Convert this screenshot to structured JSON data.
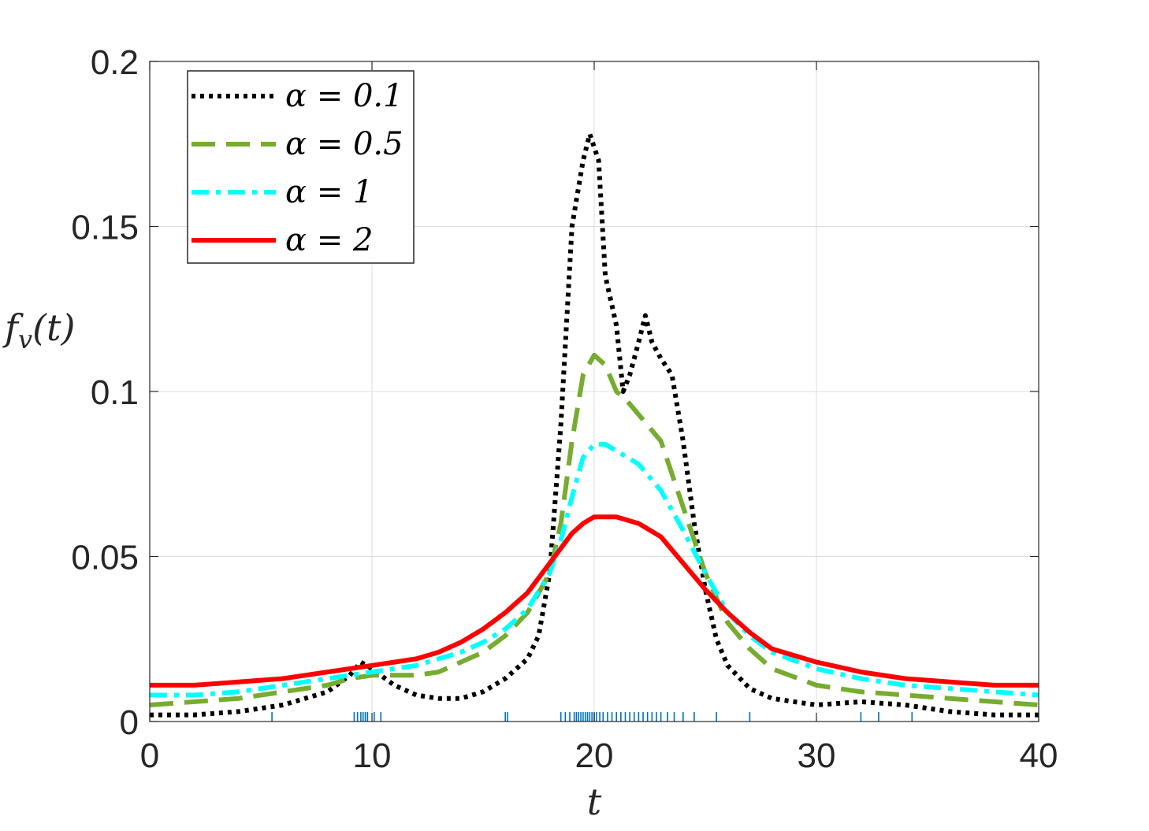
{
  "chart_data": {
    "type": "line",
    "xlabel": "t",
    "ylabel": "f_v(t)",
    "xlim": [
      0,
      40
    ],
    "ylim": [
      0,
      0.2
    ],
    "xticks": [
      "0",
      "10",
      "20",
      "30",
      "40"
    ],
    "yticks": [
      "0",
      "0.05",
      "0.1",
      "0.15",
      "0.2"
    ],
    "grid": true,
    "legend_position": "top-left",
    "series": [
      {
        "name": "α = 0.1",
        "color": "#000000",
        "style": "dotted",
        "x": [
          0,
          2,
          4,
          6,
          8,
          9,
          9.5,
          10,
          11,
          12,
          13,
          14,
          15,
          16,
          17,
          17.5,
          18,
          18.5,
          19,
          19.5,
          19.8,
          20.2,
          20.5,
          21,
          21.3,
          21.6,
          22,
          22.3,
          22.6,
          23,
          23.5,
          24,
          24.5,
          25,
          25.5,
          26,
          27,
          28,
          29,
          30,
          32,
          34,
          36,
          38,
          40
        ],
        "y": [
          0.002,
          0.002,
          0.003,
          0.005,
          0.009,
          0.014,
          0.018,
          0.016,
          0.011,
          0.008,
          0.007,
          0.007,
          0.009,
          0.013,
          0.019,
          0.026,
          0.045,
          0.09,
          0.15,
          0.17,
          0.178,
          0.17,
          0.135,
          0.12,
          0.1,
          0.105,
          0.115,
          0.123,
          0.115,
          0.11,
          0.105,
          0.085,
          0.06,
          0.04,
          0.025,
          0.017,
          0.01,
          0.007,
          0.006,
          0.005,
          0.006,
          0.005,
          0.003,
          0.002,
          0.002
        ]
      },
      {
        "name": "α = 0.5",
        "color": "#77ac30",
        "style": "dashed",
        "x": [
          0,
          2,
          4,
          6,
          8,
          9,
          10,
          11,
          12,
          13,
          14,
          15,
          16,
          17,
          18,
          18.5,
          19,
          19.5,
          20,
          20.5,
          21,
          21.5,
          22,
          23,
          24,
          25,
          26,
          27,
          28,
          30,
          32,
          34,
          36,
          38,
          40
        ],
        "y": [
          0.005,
          0.006,
          0.007,
          0.009,
          0.011,
          0.013,
          0.014,
          0.014,
          0.014,
          0.015,
          0.018,
          0.021,
          0.026,
          0.033,
          0.045,
          0.06,
          0.085,
          0.105,
          0.111,
          0.108,
          0.1,
          0.097,
          0.093,
          0.085,
          0.065,
          0.045,
          0.03,
          0.022,
          0.016,
          0.011,
          0.009,
          0.008,
          0.007,
          0.006,
          0.005
        ]
      },
      {
        "name": "α = 1",
        "color": "#00ffff",
        "style": "dashdot",
        "x": [
          0,
          2,
          4,
          6,
          8,
          9,
          10,
          11,
          12,
          13,
          14,
          15,
          16,
          17,
          18,
          18.5,
          19,
          19.5,
          20,
          20.5,
          21,
          21.5,
          22,
          23,
          24,
          25,
          26,
          27,
          28,
          30,
          32,
          34,
          36,
          38,
          40
        ],
        "y": [
          0.008,
          0.008,
          0.009,
          0.011,
          0.013,
          0.014,
          0.015,
          0.016,
          0.017,
          0.019,
          0.021,
          0.024,
          0.028,
          0.034,
          0.045,
          0.055,
          0.068,
          0.08,
          0.084,
          0.084,
          0.082,
          0.08,
          0.078,
          0.07,
          0.058,
          0.045,
          0.033,
          0.026,
          0.021,
          0.016,
          0.013,
          0.011,
          0.01,
          0.009,
          0.008
        ]
      },
      {
        "name": "α = 2",
        "color": "#ff0000",
        "style": "solid",
        "x": [
          0,
          2,
          4,
          6,
          8,
          9,
          10,
          11,
          12,
          13,
          14,
          15,
          16,
          17,
          18,
          19,
          19.5,
          20,
          20.5,
          21,
          22,
          23,
          24,
          25,
          26,
          27,
          28,
          30,
          32,
          34,
          36,
          38,
          40
        ],
        "y": [
          0.011,
          0.011,
          0.012,
          0.013,
          0.015,
          0.016,
          0.017,
          0.018,
          0.019,
          0.021,
          0.024,
          0.028,
          0.033,
          0.039,
          0.048,
          0.057,
          0.06,
          0.062,
          0.062,
          0.062,
          0.06,
          0.056,
          0.048,
          0.04,
          0.033,
          0.027,
          0.022,
          0.018,
          0.015,
          0.013,
          0.012,
          0.011,
          0.011
        ]
      }
    ],
    "rug": {
      "color": "#0072bd",
      "x": [
        5.5,
        9.2,
        9.35,
        9.5,
        9.6,
        9.7,
        9.8,
        10.1,
        10.4,
        16,
        16.1,
        18.5,
        18.7,
        18.9,
        19.1,
        19.2,
        19.3,
        19.4,
        19.5,
        19.6,
        19.7,
        19.8,
        19.9,
        20.0,
        20.1,
        20.25,
        20.4,
        20.6,
        20.8,
        21.0,
        21.2,
        21.4,
        21.6,
        21.8,
        22.0,
        22.2,
        22.4,
        22.6,
        22.8,
        23.0,
        23.3,
        23.6,
        24.0,
        24.5,
        25.5,
        27,
        32,
        32.8,
        34.3
      ]
    }
  }
}
